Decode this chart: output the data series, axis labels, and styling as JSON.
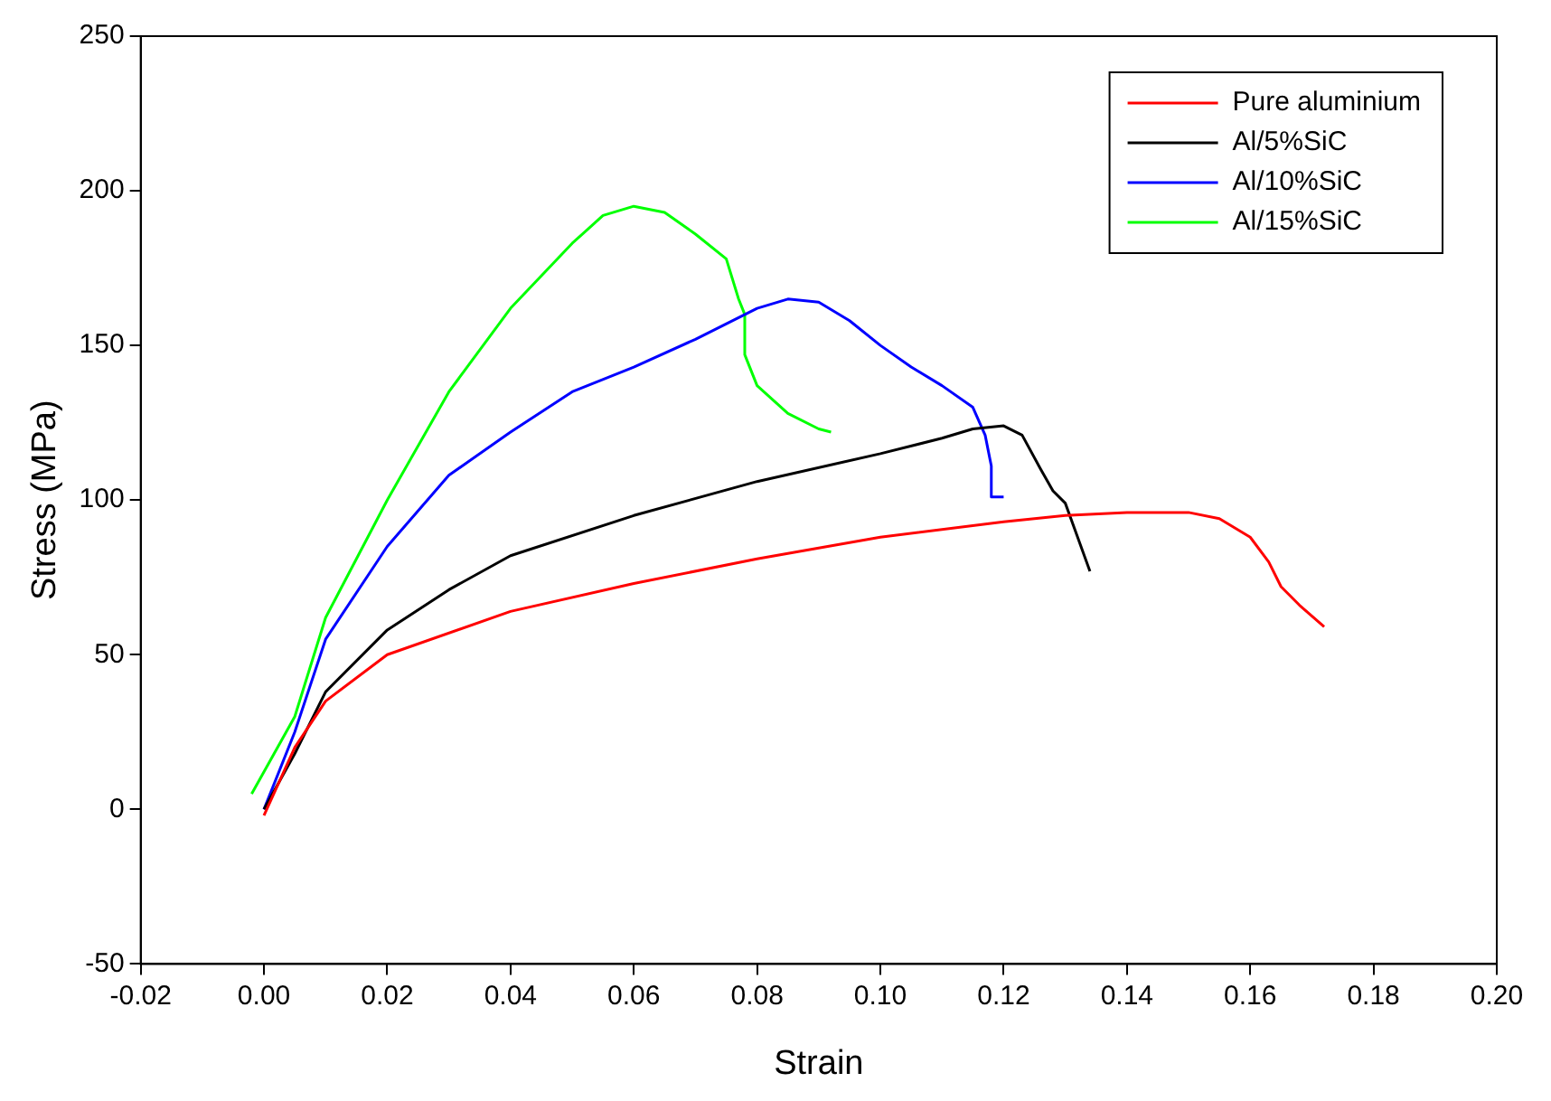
{
  "chart_data": {
    "type": "line",
    "xlabel": "Strain",
    "ylabel": "Stress (MPa)",
    "xlim": [
      -0.02,
      0.2
    ],
    "ylim": [
      -50,
      250
    ],
    "xticks": [
      {
        "value": -0.02,
        "label": "-0.02"
      },
      {
        "value": 0,
        "label": "0.00"
      },
      {
        "value": 0.02,
        "label": "0.02"
      },
      {
        "value": 0.04,
        "label": "0.04"
      },
      {
        "value": 0.06,
        "label": "0.06"
      },
      {
        "value": 0.08,
        "label": "0.08"
      },
      {
        "value": 0.1,
        "label": "0.10"
      },
      {
        "value": 0.12,
        "label": "0.12"
      },
      {
        "value": 0.14,
        "label": "0.14"
      },
      {
        "value": 0.16,
        "label": "0.16"
      },
      {
        "value": 0.18,
        "label": "0.18"
      },
      {
        "value": 0.2,
        "label": "0.20"
      }
    ],
    "yticks": [
      -50,
      0,
      50,
      100,
      150,
      200,
      250
    ],
    "grid": false,
    "legend": "top right",
    "marker": "none",
    "line_style": "solid",
    "series": [
      {
        "name": "Pure aluminium",
        "color": "#ff0000",
        "x": [
          0,
          0.005,
          0.01,
          0.02,
          0.04,
          0.06,
          0.08,
          0.1,
          0.12,
          0.13,
          0.14,
          0.15,
          0.155,
          0.16,
          0.163,
          0.165,
          0.168,
          0.172
        ],
        "values": [
          -2,
          20,
          35,
          50,
          64,
          73,
          81,
          88,
          93,
          95,
          96,
          96,
          94,
          88,
          80,
          72,
          66,
          59
        ]
      },
      {
        "name": "Al/5%SiC",
        "color": "#000000",
        "x": [
          0,
          0.005,
          0.01,
          0.02,
          0.03,
          0.04,
          0.06,
          0.08,
          0.1,
          0.11,
          0.115,
          0.12,
          0.123,
          0.126,
          0.128,
          0.13,
          0.132,
          0.134
        ],
        "values": [
          0,
          18,
          38,
          58,
          71,
          82,
          95,
          106,
          115,
          120,
          123,
          124,
          121,
          110,
          103,
          99,
          88,
          77
        ]
      },
      {
        "name": "Al/10%SiC",
        "color": "#0000ff",
        "x": [
          0,
          0.005,
          0.01,
          0.02,
          0.03,
          0.04,
          0.05,
          0.06,
          0.07,
          0.08,
          0.085,
          0.09,
          0.095,
          0.1,
          0.105,
          0.11,
          0.115,
          0.117,
          0.118,
          0.118,
          0.12
        ],
        "values": [
          0,
          25,
          55,
          85,
          108,
          122,
          135,
          143,
          152,
          162,
          165,
          164,
          158,
          150,
          143,
          137,
          130,
          121,
          111,
          101,
          101
        ]
      },
      {
        "name": "Al/15%SiC",
        "color": "#00ff00",
        "x": [
          -0.002,
          0.005,
          0.01,
          0.02,
          0.03,
          0.04,
          0.05,
          0.055,
          0.06,
          0.065,
          0.07,
          0.075,
          0.077,
          0.078,
          0.078,
          0.08,
          0.085,
          0.09,
          0.092
        ],
        "values": [
          5,
          30,
          62,
          100,
          135,
          162,
          183,
          192,
          195,
          193,
          186,
          178,
          165,
          160,
          147,
          137,
          128,
          123,
          122
        ]
      }
    ]
  }
}
